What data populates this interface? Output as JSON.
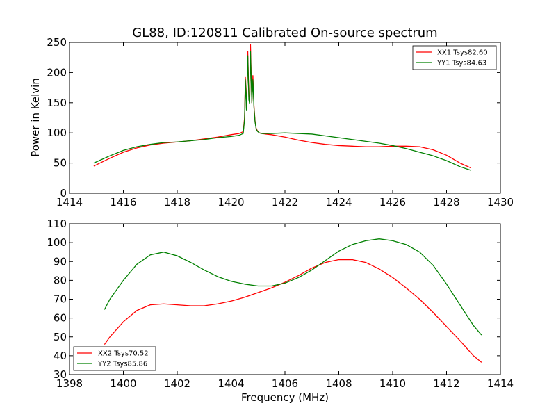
{
  "chart_data": [
    {
      "type": "line",
      "title": "GL88, ID:120811 Calibrated On-source spectrum",
      "xlabel": "",
      "ylabel": "Power in Kelvin",
      "xlim": [
        1414,
        1430
      ],
      "ylim": [
        0,
        250
      ],
      "xticks": [
        1414,
        1416,
        1418,
        1420,
        1422,
        1424,
        1426,
        1428,
        1430
      ],
      "yticks": [
        0,
        50,
        100,
        150,
        200,
        250
      ],
      "grid": false,
      "legend_position": "top-right",
      "series": [
        {
          "name": "XX1 Tsys82.60",
          "color": "#ff0000",
          "x": [
            1414.9,
            1415.5,
            1416.0,
            1416.5,
            1417.0,
            1417.5,
            1418.0,
            1418.5,
            1419.0,
            1419.5,
            1420.0,
            1420.3,
            1420.45,
            1420.5,
            1420.53,
            1420.57,
            1420.62,
            1420.66,
            1420.69,
            1420.72,
            1420.77,
            1420.81,
            1420.85,
            1420.89,
            1420.93,
            1420.97,
            1421.05,
            1421.15,
            1421.3,
            1421.5,
            1422.0,
            1422.5,
            1423.0,
            1423.5,
            1424.0,
            1424.5,
            1425.0,
            1425.5,
            1426.0,
            1426.5,
            1427.0,
            1427.5,
            1428.0,
            1428.5,
            1428.9
          ],
          "y": [
            45,
            58,
            68,
            75,
            80,
            83,
            85,
            87,
            90,
            93,
            97,
            99,
            102,
            125,
            192,
            140,
            235,
            160,
            150,
            247,
            150,
            195,
            145,
            120,
            108,
            104,
            100,
            99,
            98,
            97,
            93,
            88,
            84,
            81,
            79,
            78,
            77,
            77,
            78,
            78,
            77,
            72,
            63,
            50,
            42
          ]
        },
        {
          "name": "YY1 Tsys84.63",
          "color": "#008000",
          "x": [
            1414.9,
            1415.5,
            1416.0,
            1416.5,
            1417.0,
            1417.5,
            1418.0,
            1418.5,
            1419.0,
            1419.5,
            1420.0,
            1420.3,
            1420.45,
            1420.5,
            1420.53,
            1420.57,
            1420.62,
            1420.66,
            1420.69,
            1420.72,
            1420.77,
            1420.81,
            1420.85,
            1420.89,
            1420.93,
            1420.97,
            1421.05,
            1421.15,
            1421.3,
            1421.5,
            1422.0,
            1422.5,
            1423.0,
            1423.5,
            1424.0,
            1424.5,
            1425.0,
            1425.5,
            1426.0,
            1426.5,
            1427.0,
            1427.5,
            1428.0,
            1428.5,
            1428.9
          ],
          "y": [
            50,
            62,
            71,
            77,
            81,
            84,
            85,
            87,
            89,
            92,
            94,
            96,
            99,
            122,
            188,
            138,
            228,
            155,
            148,
            235,
            150,
            188,
            142,
            118,
            107,
            103,
            100,
            99,
            99,
            99,
            100,
            99,
            98,
            95,
            92,
            89,
            86,
            83,
            79,
            74,
            68,
            62,
            54,
            44,
            38
          ]
        }
      ]
    },
    {
      "type": "line",
      "title": "",
      "xlabel": "Frequency (MHz)",
      "ylabel": "",
      "xlim": [
        1398,
        1414
      ],
      "ylim": [
        30,
        110
      ],
      "xticks": [
        1398,
        1400,
        1402,
        1404,
        1406,
        1408,
        1410,
        1412,
        1414
      ],
      "yticks": [
        30,
        40,
        50,
        60,
        70,
        80,
        90,
        100,
        110
      ],
      "grid": false,
      "legend_position": "bottom-left",
      "series": [
        {
          "name": "XX2 Tsys70.52",
          "color": "#ff0000",
          "x": [
            1399.3,
            1399.5,
            1400.0,
            1400.5,
            1401.0,
            1401.5,
            1402.0,
            1402.5,
            1403.0,
            1403.5,
            1404.0,
            1404.5,
            1405.0,
            1405.5,
            1406.0,
            1406.5,
            1407.0,
            1407.5,
            1408.0,
            1408.5,
            1409.0,
            1409.5,
            1410.0,
            1410.5,
            1411.0,
            1411.5,
            1412.0,
            1412.5,
            1413.0,
            1413.3
          ],
          "y": [
            46,
            50,
            58,
            64,
            67,
            67.5,
            67,
            66.5,
            66.5,
            67.5,
            69,
            71,
            73.5,
            76,
            79,
            82.5,
            86.5,
            89.5,
            91,
            91,
            89.5,
            86,
            81.5,
            76,
            70,
            63,
            55.5,
            48,
            40,
            36.5
          ]
        },
        {
          "name": "YY2 Tsys85.86",
          "color": "#008000",
          "x": [
            1399.3,
            1399.5,
            1400.0,
            1400.5,
            1401.0,
            1401.5,
            1402.0,
            1402.5,
            1403.0,
            1403.5,
            1404.0,
            1404.5,
            1405.0,
            1405.5,
            1406.0,
            1406.5,
            1407.0,
            1407.5,
            1408.0,
            1408.5,
            1409.0,
            1409.5,
            1410.0,
            1410.5,
            1411.0,
            1411.5,
            1412.0,
            1412.5,
            1413.0,
            1413.3
          ],
          "y": [
            64.5,
            70,
            80,
            88.5,
            93.5,
            95,
            93,
            89.5,
            85.5,
            82,
            79.5,
            78,
            77,
            77,
            78.5,
            81.5,
            85.5,
            90.5,
            95.5,
            99,
            101,
            102,
            101,
            99,
            95,
            88,
            78,
            67,
            56,
            51
          ]
        }
      ]
    }
  ]
}
